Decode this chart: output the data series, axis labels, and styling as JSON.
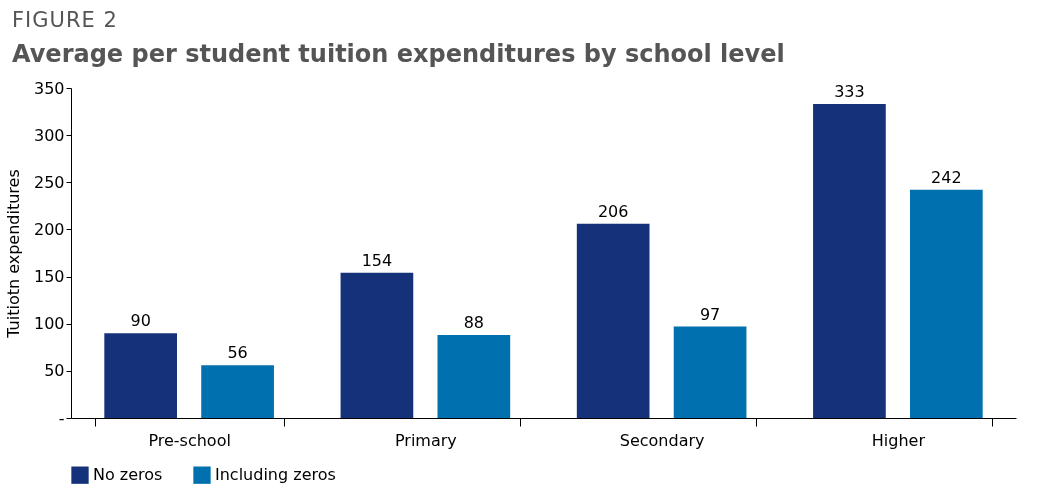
{
  "chart_data": {
    "type": "bar",
    "subtitle": "FIGURE 2",
    "title": "Average per student tuition expenditures by school level",
    "ylabel": "Tuitiotn expenditures",
    "categories": [
      "Pre-school",
      "Primary",
      "Secondary",
      "Higher"
    ],
    "series": [
      {
        "name": "No zeros",
        "color": "#15317a",
        "values": [
          90,
          154,
          206,
          333
        ]
      },
      {
        "name": "Including zeros",
        "color": "#0070ae",
        "values": [
          56,
          88,
          97,
          242
        ]
      }
    ],
    "ylim": [
      0,
      350
    ],
    "yticks": [
      {
        "value": 0,
        "label": "-"
      },
      50,
      100,
      150,
      200,
      250,
      300,
      350
    ],
    "grid": false,
    "legend": "bottom",
    "data_labels": true
  }
}
